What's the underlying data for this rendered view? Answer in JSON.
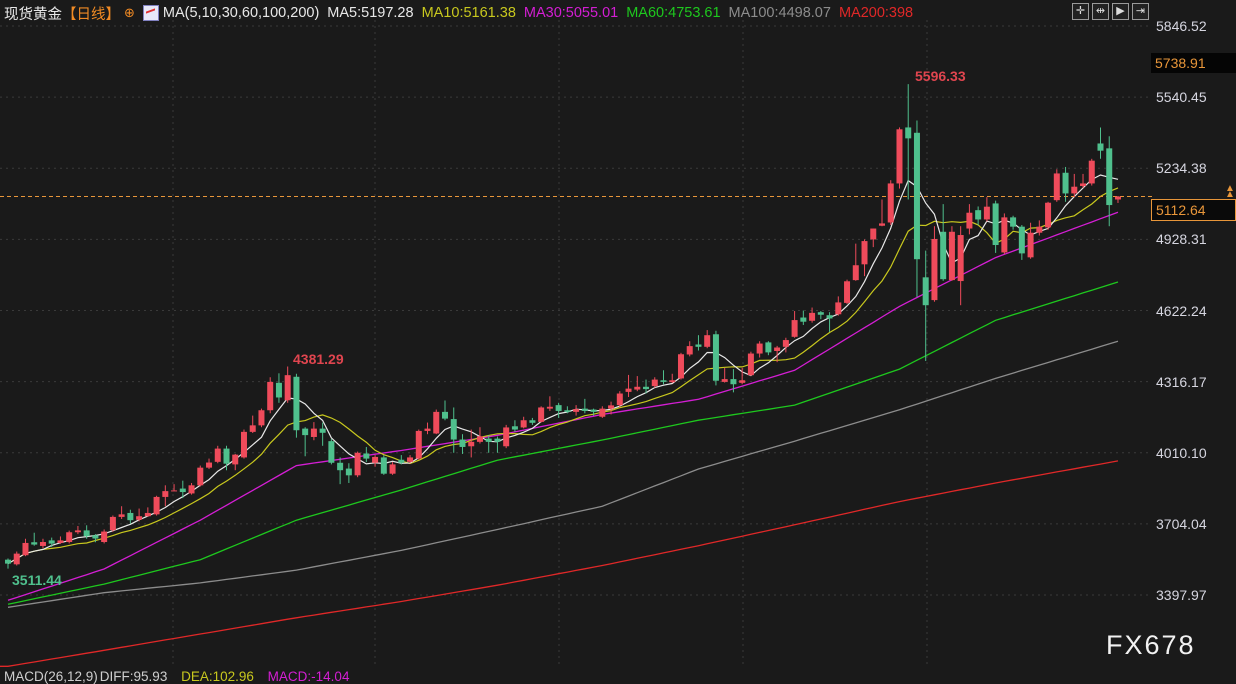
{
  "header": {
    "title": "现货黄金",
    "period": "【日线】",
    "indicator": "MA(5,10,30,60,100,200)",
    "ma5": "MA5:5197.28",
    "ma10": "MA10:5161.38",
    "ma30": "MA30:5055.01",
    "ma60": "MA60:4753.61",
    "ma100": "MA100:4498.07",
    "ma200": "MA200:398"
  },
  "toolbar": [
    "crosshair-icon",
    "zoom-range-icon",
    "play-icon",
    "exit-icon"
  ],
  "colors": {
    "up": "#ef4b5b",
    "down": "#4fc08d",
    "ma5": "#e8e8e8",
    "ma10": "#c8c81e",
    "ma30": "#d41ed4",
    "ma60": "#1ec81e",
    "ma100": "#8c8c8c",
    "ma200": "#e02828",
    "current": "#e8963a",
    "background": "#1a1a1a"
  },
  "axis": {
    "ticks": [
      "5846.52",
      "5540.45",
      "5234.38",
      "4928.31",
      "4622.24",
      "4316.17",
      "4010.10",
      "3704.04",
      "3397.97"
    ],
    "high_marker": "5738.91",
    "current_price": "5112.64"
  },
  "annotations": {
    "max": "5596.33",
    "local_max": "4381.29",
    "min": "3511.44"
  },
  "watermark": "FX678",
  "macd": {
    "label": "MACD(26,12,9)",
    "diff": "DIFF:95.93",
    "dea": "DEA:102.96",
    "macd": "MACD:-14.04"
  },
  "chart_data": {
    "type": "candlestick",
    "ylim": [
      3397.97,
      5846.52
    ],
    "grid": true,
    "current_price": 5112.64,
    "ohlc": [
      [
        3550,
        3555,
        3511.44,
        3533
      ],
      [
        3530,
        3585,
        3525,
        3576
      ],
      [
        3569,
        3640,
        3565,
        3622
      ],
      [
        3625,
        3666,
        3610,
        3615
      ],
      [
        3609,
        3640,
        3600,
        3626
      ],
      [
        3633,
        3645,
        3605,
        3619
      ],
      [
        3622,
        3650,
        3618,
        3633
      ],
      [
        3626,
        3675,
        3620,
        3668
      ],
      [
        3668,
        3695,
        3660,
        3676
      ],
      [
        3676,
        3698,
        3640,
        3651
      ],
      [
        3655,
        3660,
        3625,
        3641
      ],
      [
        3626,
        3680,
        3620,
        3671
      ],
      [
        3677,
        3740,
        3670,
        3734
      ],
      [
        3734,
        3780,
        3725,
        3745
      ],
      [
        3751,
        3765,
        3705,
        3720
      ],
      [
        3722,
        3770,
        3715,
        3737
      ],
      [
        3737,
        3775,
        3735,
        3751
      ],
      [
        3745,
        3825,
        3740,
        3820
      ],
      [
        3820,
        3870,
        3780,
        3845
      ],
      [
        3845,
        3875,
        3845,
        3848
      ],
      [
        3856,
        3890,
        3815,
        3841
      ],
      [
        3835,
        3880,
        3830,
        3870
      ],
      [
        3870,
        3955,
        3865,
        3946
      ],
      [
        3946,
        3985,
        3940,
        3968
      ],
      [
        3971,
        4040,
        3965,
        4028
      ],
      [
        4028,
        4040,
        3935,
        3963
      ],
      [
        3960,
        4005,
        3935,
        4002
      ],
      [
        3990,
        4110,
        3985,
        4100
      ],
      [
        4100,
        4170,
        4095,
        4128
      ],
      [
        4128,
        4200,
        4120,
        4193
      ],
      [
        4193,
        4335,
        4180,
        4315
      ],
      [
        4311,
        4352,
        4225,
        4248
      ],
      [
        4236,
        4381.29,
        4225,
        4344
      ],
      [
        4337,
        4350,
        4075,
        4107
      ],
      [
        4114,
        4120,
        3995,
        4086
      ],
      [
        4078,
        4142,
        4064,
        4114
      ],
      [
        4114,
        4140,
        4040,
        4096
      ],
      [
        4060,
        4070,
        3960,
        3967
      ],
      [
        3967,
        3990,
        3875,
        3935
      ],
      [
        3942,
        3965,
        3880,
        3913
      ],
      [
        3913,
        4015,
        3905,
        4010
      ],
      [
        4007,
        4035,
        3970,
        3985
      ],
      [
        3967,
        4000,
        3950,
        3992
      ],
      [
        3990,
        4000,
        3915,
        3920
      ],
      [
        3920,
        3970,
        3915,
        3960
      ],
      [
        3980,
        4000,
        3960,
        3967
      ],
      [
        3971,
        4000,
        3965,
        3990
      ],
      [
        3985,
        4110,
        3980,
        4104
      ],
      [
        4104,
        4140,
        4090,
        4114
      ],
      [
        4093,
        4196,
        4090,
        4186
      ],
      [
        4186,
        4235,
        4150,
        4157
      ],
      [
        4155,
        4205,
        4010,
        4067
      ],
      [
        4067,
        4090,
        4005,
        4035
      ],
      [
        4038,
        4110,
        3990,
        4057
      ],
      [
        4057,
        4120,
        4050,
        4081
      ],
      [
        4071,
        4085,
        4010,
        4057
      ],
      [
        4071,
        4080,
        4010,
        4057
      ],
      [
        4038,
        4130,
        4030,
        4119
      ],
      [
        4124,
        4150,
        4100,
        4110
      ],
      [
        4119,
        4165,
        4115,
        4150
      ],
      [
        4150,
        4160,
        4130,
        4139
      ],
      [
        4143,
        4210,
        4140,
        4205
      ],
      [
        4200,
        4253,
        4190,
        4208
      ],
      [
        4215,
        4225,
        4160,
        4190
      ],
      [
        4193,
        4210,
        4180,
        4186
      ],
      [
        4186,
        4215,
        4170,
        4198
      ],
      [
        4200,
        4242,
        4180,
        4190
      ],
      [
        4196,
        4200,
        4170,
        4186
      ],
      [
        4165,
        4210,
        4160,
        4200
      ],
      [
        4200,
        4230,
        4175,
        4214
      ],
      [
        4215,
        4275,
        4205,
        4265
      ],
      [
        4272,
        4345,
        4250,
        4286
      ],
      [
        4282,
        4340,
        4275,
        4294
      ],
      [
        4294,
        4325,
        4265,
        4284
      ],
      [
        4297,
        4335,
        4290,
        4325
      ],
      [
        4322,
        4365,
        4305,
        4315
      ],
      [
        4314,
        4350,
        4310,
        4322
      ],
      [
        4330,
        4440,
        4325,
        4434
      ],
      [
        4433,
        4490,
        4425,
        4469
      ],
      [
        4476,
        4516,
        4450,
        4466
      ],
      [
        4466,
        4538,
        4460,
        4516
      ],
      [
        4520,
        4535,
        4300,
        4320
      ],
      [
        4315,
        4375,
        4312,
        4327
      ],
      [
        4327,
        4370,
        4270,
        4305
      ],
      [
        4311,
        4375,
        4305,
        4322
      ],
      [
        4344,
        4445,
        4340,
        4437
      ],
      [
        4437,
        4490,
        4420,
        4480
      ],
      [
        4485,
        4490,
        4430,
        4442
      ],
      [
        4448,
        4470,
        4400,
        4463
      ],
      [
        4466,
        4505,
        4442,
        4495
      ],
      [
        4509,
        4620,
        4505,
        4581
      ],
      [
        4592,
        4622,
        4560,
        4574
      ],
      [
        4578,
        4635,
        4570,
        4612
      ],
      [
        4615,
        4620,
        4585,
        4604
      ],
      [
        4602,
        4615,
        4530,
        4588
      ],
      [
        4606,
        4683,
        4600,
        4657
      ],
      [
        4655,
        4755,
        4650,
        4748
      ],
      [
        4753,
        4910,
        4750,
        4817
      ],
      [
        4821,
        4928,
        4770,
        4921
      ],
      [
        4928,
        4975,
        4895,
        4975
      ],
      [
        4987,
        5100,
        4985,
        4997
      ],
      [
        5001,
        5183,
        4990,
        5169
      ],
      [
        5169,
        5410,
        5147,
        5402
      ],
      [
        5410,
        5596.33,
        5100,
        5363
      ],
      [
        5387,
        5440,
        4680,
        4843
      ],
      [
        4765,
        4880,
        4405,
        4645
      ],
      [
        4667,
        4985,
        4660,
        4930
      ],
      [
        4961,
        5080,
        4750,
        4757
      ],
      [
        4753,
        4985,
        4750,
        4961
      ],
      [
        4749,
        4985,
        4645,
        4947
      ],
      [
        4975,
        5080,
        4950,
        5043
      ],
      [
        5054,
        5070,
        4990,
        5014
      ],
      [
        5014,
        5110,
        5005,
        5069
      ],
      [
        5083,
        5095,
        4870,
        4904
      ],
      [
        4872,
        5040,
        4865,
        5023
      ],
      [
        5023,
        5030,
        4970,
        4983
      ],
      [
        4983,
        4990,
        4840,
        4868
      ],
      [
        4851,
        5000,
        4845,
        4957
      ],
      [
        4957,
        5010,
        4945,
        4983
      ],
      [
        4980,
        5090,
        4970,
        5086
      ],
      [
        5097,
        5230,
        5090,
        5212
      ],
      [
        5215,
        5240,
        5090,
        5126
      ],
      [
        5126,
        5210,
        5110,
        5155
      ],
      [
        5158,
        5210,
        5150,
        5169
      ],
      [
        5169,
        5275,
        5160,
        5267
      ],
      [
        5341,
        5410,
        5275,
        5310
      ],
      [
        5320,
        5372,
        4985,
        5076
      ],
      [
        5100,
        5115,
        5085,
        5112.64
      ]
    ],
    "ma_series": {
      "index": [
        0,
        11,
        22,
        33,
        45,
        56,
        68,
        79,
        90,
        102,
        113,
        127
      ],
      "ma30": [
        3375,
        3510,
        3720,
        3955,
        4020,
        4085,
        4175,
        4240,
        4365,
        4640,
        4850,
        5045
      ],
      "ma60": [
        3358,
        3445,
        3550,
        3720,
        3850,
        3978,
        4065,
        4150,
        4215,
        4370,
        4580,
        4745
      ],
      "ma100": [
        3345,
        3408,
        3450,
        3505,
        3590,
        3680,
        3780,
        3940,
        4060,
        4195,
        4330,
        4490
      ],
      "ma200": [
        3091,
        3160,
        3230,
        3300,
        3370,
        3440,
        3525,
        3610,
        3700,
        3800,
        3880,
        3975
      ]
    }
  }
}
